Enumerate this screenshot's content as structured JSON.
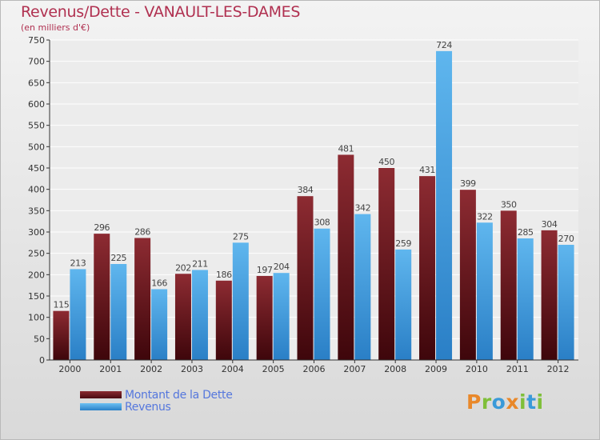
{
  "chart_data": {
    "type": "bar",
    "title": "Revenus/Dette - VANAULT-LES-DAMES",
    "subtitle": "(en milliers d'€)",
    "categories": [
      "2000",
      "2001",
      "2002",
      "2003",
      "2004",
      "2005",
      "2006",
      "2007",
      "2008",
      "2009",
      "2010",
      "2011",
      "2012"
    ],
    "series": [
      {
        "name": "Montant de la Dette",
        "color": "#7a1a22",
        "values": [
          115,
          296,
          286,
          202,
          186,
          197,
          384,
          481,
          450,
          431,
          399,
          350,
          304
        ]
      },
      {
        "name": "Revenus",
        "color": "#4aa3e0",
        "values": [
          213,
          225,
          166,
          211,
          275,
          204,
          308,
          342,
          259,
          724,
          322,
          285,
          270
        ]
      }
    ],
    "ylim": [
      0,
      750
    ],
    "yticks": [
      0,
      50,
      100,
      150,
      200,
      250,
      300,
      350,
      400,
      450,
      500,
      550,
      600,
      650,
      700,
      750
    ],
    "grid": true,
    "legend_position": "bottom-left",
    "colors": {
      "title": "#b03050",
      "legend_text": "#5577dd",
      "axis": "#333333"
    }
  },
  "logo": {
    "text": "Proxiti",
    "letters": [
      {
        "ch": "P",
        "color": "#e9882a"
      },
      {
        "ch": "r",
        "color": "#7fbf3a"
      },
      {
        "ch": "o",
        "color": "#3a9ad9"
      },
      {
        "ch": "x",
        "color": "#e9882a"
      },
      {
        "ch": "i",
        "color": "#7fbf3a"
      },
      {
        "ch": "t",
        "color": "#3a9ad9"
      },
      {
        "ch": "i",
        "color": "#7fbf3a"
      }
    ]
  }
}
